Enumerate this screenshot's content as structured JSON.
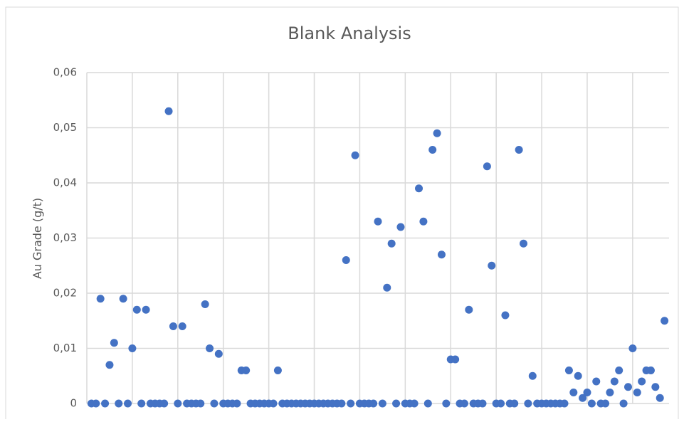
{
  "chart_data": {
    "type": "scatter",
    "title": "Blank Analysis",
    "y_label": "Au Grade (g/t)",
    "color": "#4472c4",
    "grid": true,
    "xlim": [
      0,
      128
    ],
    "xticks": [
      0,
      10,
      20,
      30,
      40,
      50,
      60,
      70,
      80,
      90,
      100,
      110,
      120
    ],
    "ylim": [
      0,
      0.06
    ],
    "yticks": [
      0,
      {
        "value": 0.01,
        "label": "0,01"
      },
      {
        "value": 0.02,
        "label": "0,02"
      },
      {
        "value": 0.03,
        "label": "0,03"
      },
      {
        "value": 0.04,
        "label": "0,04"
      },
      {
        "value": 0.05,
        "label": "0,05"
      },
      {
        "value": 0.06,
        "label": "0,06"
      }
    ],
    "x": [
      1,
      2,
      3,
      4,
      5,
      6,
      7,
      8,
      9,
      10,
      11,
      12,
      13,
      14,
      15,
      16,
      17,
      18,
      19,
      20,
      21,
      22,
      23,
      24,
      25,
      26,
      27,
      28,
      29,
      30,
      31,
      32,
      33,
      34,
      35,
      36,
      37,
      38,
      39,
      40,
      41,
      42,
      43,
      44,
      45,
      46,
      47,
      48,
      49,
      50,
      51,
      52,
      53,
      54,
      55,
      56,
      57,
      58,
      59,
      60,
      61,
      62,
      63,
      64,
      65,
      66,
      67,
      68,
      69,
      70,
      71,
      72,
      73,
      74,
      75,
      76,
      77,
      78,
      79,
      80,
      81,
      82,
      83,
      84,
      85,
      86,
      87,
      88,
      89,
      90,
      91,
      92,
      93,
      94,
      95,
      96,
      97,
      98,
      99,
      100,
      101,
      102,
      103,
      104,
      105,
      106,
      107,
      108,
      109,
      110,
      111,
      112,
      113,
      114,
      115,
      116,
      117,
      118,
      119,
      120,
      121,
      122,
      123,
      124,
      125,
      126,
      127
    ],
    "values": [
      0,
      0,
      0.019,
      0,
      0.007,
      0.011,
      0,
      0.019,
      0,
      0.01,
      0.017,
      0,
      0.017,
      0,
      0,
      0,
      0,
      0.053,
      0.014,
      0,
      0.014,
      0,
      0,
      0,
      0,
      0.018,
      0.01,
      0,
      0.009,
      0,
      0,
      0,
      0,
      0.006,
      0.006,
      0,
      0,
      0,
      0,
      0,
      0,
      0.006,
      0,
      0,
      0,
      0,
      0,
      0,
      0,
      0,
      0,
      0,
      0,
      0,
      0,
      0,
      0.026,
      0,
      0.045,
      0,
      0,
      0,
      0,
      0.033,
      0,
      0.021,
      0.029,
      0,
      0.032,
      0,
      0,
      0,
      0.039,
      0.033,
      0,
      0.046,
      0.049,
      0.027,
      0,
      0.008,
      0.008,
      0,
      0,
      0.017,
      0,
      0,
      0,
      0.043,
      0.025,
      0,
      0,
      0.016,
      0,
      0,
      0.046,
      0.029,
      0,
      0.005,
      0,
      0,
      0,
      0,
      0,
      0,
      0,
      0.006,
      0.002,
      0.005,
      0.001,
      0.002,
      0,
      0.004,
      0,
      0,
      0.002,
      0.004,
      0.006,
      0,
      0.003,
      0.01,
      0.002,
      0.004,
      0.006,
      0.006,
      0.003,
      0.001,
      0.015
    ]
  }
}
